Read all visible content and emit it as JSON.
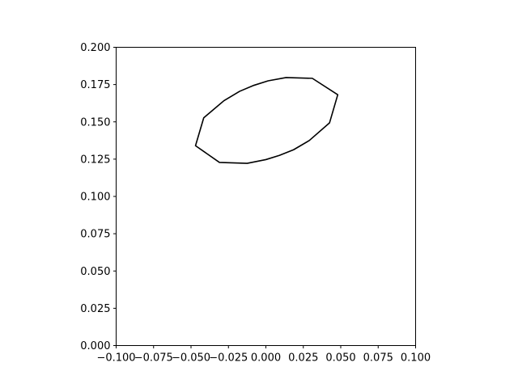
{
  "chart_data": {
    "type": "line",
    "title": "",
    "xlabel": "",
    "ylabel": "",
    "xlim": [
      -0.1,
      0.1
    ],
    "ylim": [
      0.0,
      0.2
    ],
    "x_ticks": [
      {
        "value": -0.1,
        "label": "−0.100"
      },
      {
        "value": -0.075,
        "label": "−0.075"
      },
      {
        "value": -0.05,
        "label": "−0.050"
      },
      {
        "value": -0.025,
        "label": "−0.025"
      },
      {
        "value": 0.0,
        "label": "0.000"
      },
      {
        "value": 0.025,
        "label": "0.025"
      },
      {
        "value": 0.05,
        "label": "0.050"
      },
      {
        "value": 0.075,
        "label": "0.075"
      },
      {
        "value": 0.1,
        "label": "0.100"
      }
    ],
    "y_ticks": [
      {
        "value": 0.0,
        "label": "0.000"
      },
      {
        "value": 0.025,
        "label": "0.025"
      },
      {
        "value": 0.05,
        "label": "0.050"
      },
      {
        "value": 0.075,
        "label": "0.075"
      },
      {
        "value": 0.1,
        "label": "0.100"
      },
      {
        "value": 0.125,
        "label": "0.125"
      },
      {
        "value": 0.15,
        "label": "0.150"
      },
      {
        "value": 0.175,
        "label": "0.175"
      },
      {
        "value": 0.2,
        "label": "0.200"
      }
    ],
    "grid": false,
    "legend": "none",
    "line_color": "#000000",
    "series": [
      {
        "closed": true,
        "points": [
          {
            "x": 0.031,
            "y": 0.1792
          },
          {
            "x": 0.048,
            "y": 0.1682
          },
          {
            "x": 0.0425,
            "y": 0.1493
          },
          {
            "x": 0.029,
            "y": 0.1375
          },
          {
            "x": 0.0185,
            "y": 0.1313
          },
          {
            "x": 0.009,
            "y": 0.1275
          },
          {
            "x": 0.0,
            "y": 0.1247
          },
          {
            "x": -0.0125,
            "y": 0.1222
          },
          {
            "x": -0.031,
            "y": 0.1228
          },
          {
            "x": -0.047,
            "y": 0.134
          },
          {
            "x": -0.0415,
            "y": 0.1527
          },
          {
            "x": -0.028,
            "y": 0.1642
          },
          {
            "x": -0.0175,
            "y": 0.1705
          },
          {
            "x": -0.008,
            "y": 0.1745
          },
          {
            "x": 0.0015,
            "y": 0.1775
          },
          {
            "x": 0.0135,
            "y": 0.1797
          }
        ]
      }
    ]
  }
}
